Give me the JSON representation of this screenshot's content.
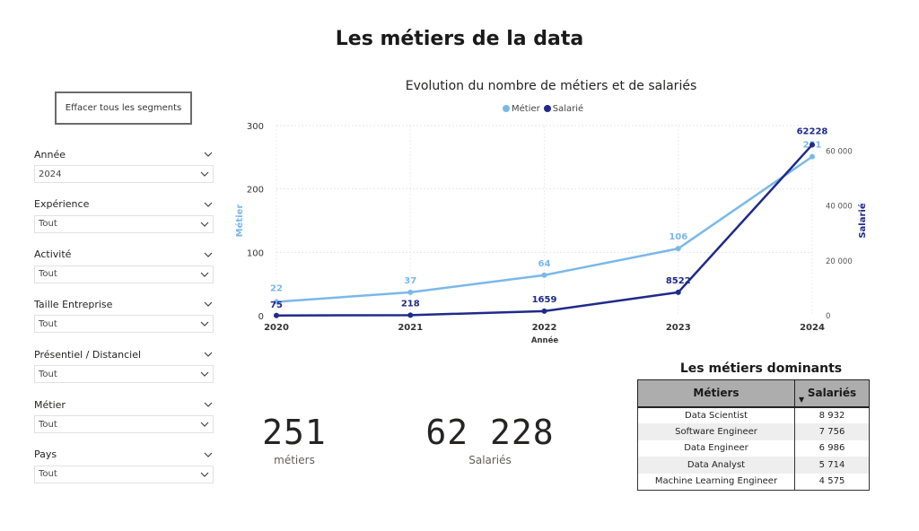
{
  "page": {
    "title": "Les métiers de la data"
  },
  "clear_button": {
    "label": "Effacer tous les segments"
  },
  "slicers": [
    {
      "label": "Année",
      "value": "2024"
    },
    {
      "label": "Expérience",
      "value": "Tout"
    },
    {
      "label": "Activité",
      "value": "Tout"
    },
    {
      "label": "Taille Entreprise",
      "value": "Tout"
    },
    {
      "label": "Présentiel / Distanciel",
      "value": "Tout"
    },
    {
      "label": "Métier",
      "value": "Tout"
    },
    {
      "label": "Pays",
      "value": "Tout"
    }
  ],
  "chart_data": {
    "type": "line",
    "title": "Evolution du nombre de métiers et de salariés",
    "xlabel": "Année",
    "ylabel": "Métier",
    "y2label": "Salarié",
    "x": [
      "2020",
      "2021",
      "2022",
      "2023",
      "2024"
    ],
    "ylim": [
      0,
      300
    ],
    "yticks": [
      "0",
      "100",
      "200",
      "300"
    ],
    "y2lim": [
      0,
      69228
    ],
    "y2ticks": [
      "0",
      "20 000",
      "40 000",
      "60 000"
    ],
    "y2tick_values": [
      0,
      20000,
      40000,
      60000
    ],
    "grid": true,
    "legend": "top-center",
    "series": [
      {
        "name": "Métier",
        "axis": "left",
        "color": "#7ab8ea",
        "values": [
          22,
          37,
          64,
          106,
          251
        ],
        "labels": [
          "22",
          "37",
          "64",
          "106",
          "251"
        ]
      },
      {
        "name": "Salarié",
        "axis": "right",
        "color": "#1f2a8a",
        "values": [
          75,
          218,
          1659,
          8522,
          62228
        ],
        "labels": [
          "75",
          "218",
          "1659",
          "8522",
          "62228"
        ]
      }
    ]
  },
  "kpis": [
    {
      "value": "251",
      "label": "métiers"
    },
    {
      "value": "62 228",
      "label": "Salariés"
    }
  ],
  "table": {
    "title": "Les métiers dominants",
    "columns": [
      "Métiers",
      "Salariés"
    ],
    "sort_icon": "sort-descending-icon",
    "rows": [
      {
        "metier": "Data Scientist",
        "salaries": "8 932"
      },
      {
        "metier": "Software Engineer",
        "salaries": "7 756"
      },
      {
        "metier": "Data Engineer",
        "salaries": "6 986"
      },
      {
        "metier": "Data Analyst",
        "salaries": "5 714"
      },
      {
        "metier": "Machine Learning Engineer",
        "salaries": "4 575"
      }
    ]
  }
}
